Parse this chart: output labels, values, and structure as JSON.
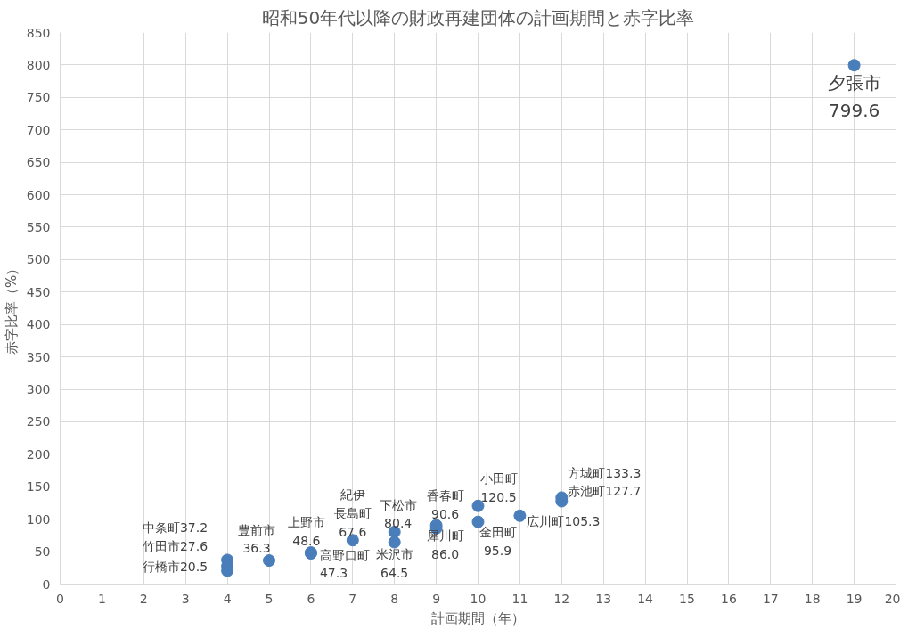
{
  "chart_data": {
    "type": "scatter",
    "title": "昭和50年代以降の財政再建団体の計画期間と赤字比率",
    "xlabel": "計画期間（年）",
    "ylabel": "赤字比率（%）",
    "x": [
      4,
      4,
      4,
      5,
      6,
      6,
      7,
      8,
      8,
      9,
      9,
      10,
      10,
      11,
      12,
      12,
      19
    ],
    "values": [
      37.2,
      27.6,
      20.5,
      36.3,
      47.3,
      48.6,
      67.6,
      80.4,
      64.5,
      90.6,
      86.0,
      120.5,
      95.9,
      105.3,
      133.3,
      127.7,
      799.6
    ],
    "value_labels": [
      "中条町37.2",
      "竹田市27.6",
      "行橋市20.5",
      "豊前市\n36.3",
      "高野口町\n47.3",
      "上野市\n48.6",
      "紀伊長島町\n67.6",
      "下松市\n80.4",
      "米沢市\n64.5",
      "香春町\n90.6",
      "犀川町\n86.0",
      "小田町\n120.5",
      "金田町\n95.9",
      "広川町105.3",
      "方城町133.3",
      "赤池町127.7",
      "夕張市\n799.6"
    ],
    "color": "#4a7ebb",
    "marker": "circle",
    "xlim": [
      0,
      20
    ],
    "xticks": [
      0,
      1,
      2,
      3,
      4,
      5,
      6,
      7,
      8,
      9,
      10,
      11,
      12,
      13,
      14,
      15,
      16,
      17,
      18,
      19,
      20
    ],
    "ylim": [
      0,
      850
    ],
    "yticks": [
      0,
      50,
      100,
      150,
      200,
      250,
      300,
      350,
      400,
      450,
      500,
      550,
      600,
      650,
      700,
      750,
      800,
      850
    ],
    "grid": true
  }
}
